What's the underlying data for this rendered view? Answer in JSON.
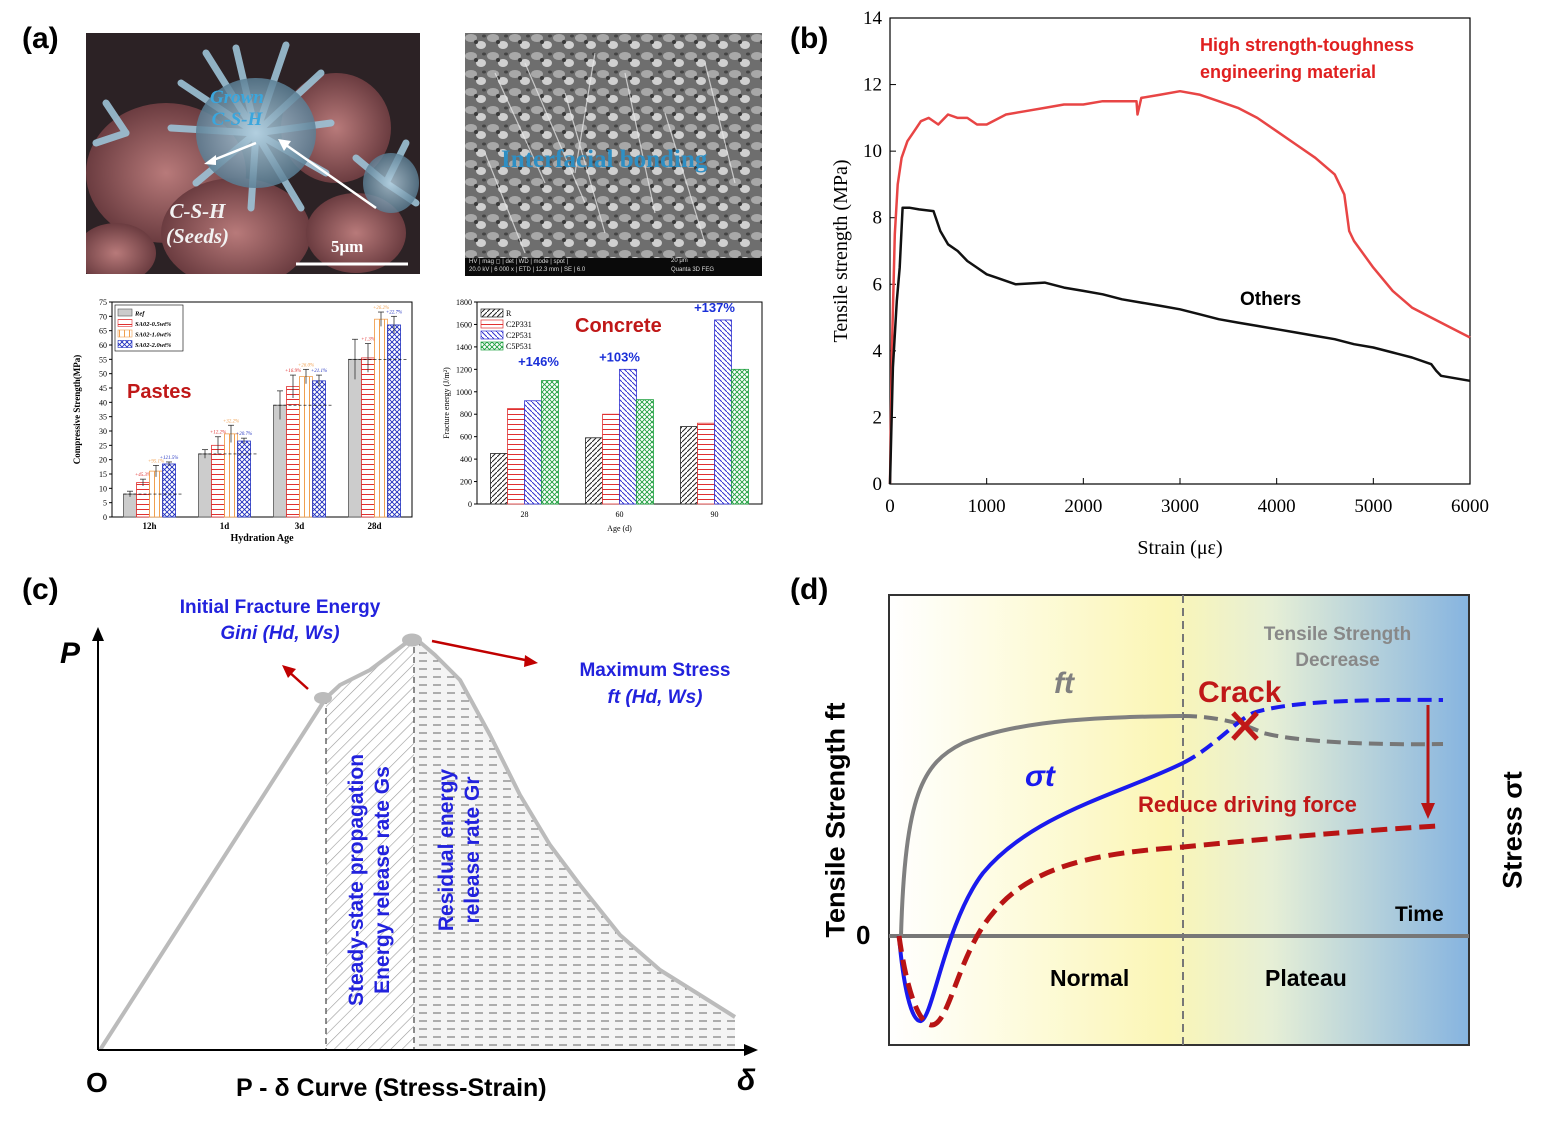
{
  "panels": {
    "a": {
      "label": "(a)",
      "sem1": {
        "grown_line1": "Grown",
        "grown_line2": "C-S-H",
        "seeds_line1": "C-S-H",
        "seeds_line2": "(Seeds)",
        "scale": "5μm"
      },
      "sem2": {
        "caption": "Interfacial bonding",
        "meta_labels": "HV | mag ◻ | det | WD | mode | spot |",
        "meta_values": "20.0 kV | 6 000 x | ETD | 12.3 mm | SE | 6.0",
        "scale": "20 μm",
        "brand": "Quanta 3D FEG"
      }
    },
    "b": {
      "label": "(b)"
    },
    "c": {
      "label": "(c)"
    },
    "d": {
      "label": "(d)"
    }
  },
  "chart_data": [
    {
      "id": "a-pastes",
      "type": "bar",
      "title": "Pastes",
      "xlabel": "Hydration Age",
      "ylabel": "Compressive Strength(MPa)",
      "ylim": [
        0,
        75
      ],
      "yticks": [
        0,
        5,
        10,
        15,
        20,
        25,
        30,
        35,
        40,
        45,
        50,
        55,
        60,
        65,
        70,
        75
      ],
      "categories": [
        "12h",
        "1d",
        "3d",
        "28d"
      ],
      "series": [
        {
          "name": "Ref",
          "values": [
            8,
            22,
            39,
            55
          ],
          "errors": [
            1,
            1.5,
            5,
            7
          ],
          "color": "#888888"
        },
        {
          "name": "SA02-0.5wt%",
          "values": [
            12,
            25,
            45.5,
            55.5
          ],
          "errors": [
            1.2,
            3,
            4,
            5
          ],
          "color": "#e03030"
        },
        {
          "name": "SA02-1.0wt%",
          "values": [
            16,
            29,
            49,
            69
          ],
          "errors": [
            2,
            3,
            2.5,
            2.5
          ],
          "color": "#f0a050"
        },
        {
          "name": "SA02-2.0wt%",
          "values": [
            18.5,
            26.5,
            47.5,
            67
          ],
          "errors": [
            0.7,
            1,
            2,
            3
          ],
          "color": "#2030c0"
        }
      ],
      "annotations": [
        [
          "+45.3%",
          "+95.1%",
          "+121.5%"
        ],
        [
          "+12.2%",
          "+32.2%",
          "+20.7%"
        ],
        [
          "+16.9%",
          "+26.0%",
          "+21.1%"
        ],
        [
          "+1.3%",
          "+26.2%",
          "+22.7%"
        ]
      ]
    },
    {
      "id": "a-concrete",
      "type": "bar",
      "title": "Concrete",
      "xlabel": "Age (d)",
      "ylabel": "Fracture energy (J/m²)",
      "ylim": [
        0,
        1800
      ],
      "yticks": [
        0,
        200,
        400,
        600,
        800,
        1000,
        1200,
        1400,
        1600,
        1800
      ],
      "categories": [
        "28",
        "60",
        "90"
      ],
      "series": [
        {
          "name": "R",
          "values": [
            450,
            590,
            690
          ],
          "color": "#222222"
        },
        {
          "name": "C2P331",
          "values": [
            850,
            800,
            720
          ],
          "color": "#e03030"
        },
        {
          "name": "C2P531",
          "values": [
            920,
            1200,
            1640
          ],
          "color": "#3030d0"
        },
        {
          "name": "C5P531",
          "values": [
            1100,
            930,
            1200
          ],
          "color": "#20a040"
        }
      ],
      "annotations": [
        "+146%",
        "+103%",
        "+137%"
      ]
    },
    {
      "id": "b",
      "type": "line",
      "xlabel": "Strain (με)",
      "ylabel": "Tensile strength (MPa)",
      "xlim": [
        0,
        6000
      ],
      "ylim": [
        0,
        14
      ],
      "xticks": [
        0,
        1000,
        2000,
        3000,
        4000,
        5000,
        6000
      ],
      "yticks": [
        0,
        2,
        4,
        6,
        8,
        10,
        12,
        14
      ],
      "series": [
        {
          "name": "High strength-toughness engineering material",
          "color": "#e84545",
          "x": [
            0,
            20,
            50,
            80,
            120,
            180,
            250,
            320,
            400,
            500,
            600,
            700,
            800,
            900,
            1000,
            1200,
            1400,
            1600,
            1800,
            2000,
            2200,
            2400,
            2550,
            2560,
            2600,
            2800,
            3000,
            3200,
            3400,
            3600,
            3800,
            4000,
            4200,
            4400,
            4600,
            4700,
            4750,
            4800,
            5000,
            5200,
            5400,
            5600,
            5800,
            6000
          ],
          "y": [
            0,
            4,
            7.5,
            9,
            9.8,
            10.3,
            10.6,
            10.9,
            11.0,
            10.8,
            11.1,
            11.0,
            11.0,
            10.8,
            10.8,
            11.1,
            11.2,
            11.3,
            11.4,
            11.4,
            11.5,
            11.5,
            11.5,
            11.1,
            11.6,
            11.7,
            11.8,
            11.7,
            11.5,
            11.3,
            11.0,
            10.6,
            10.2,
            9.8,
            9.3,
            8.7,
            7.6,
            7.3,
            6.5,
            5.8,
            5.3,
            5.0,
            4.7,
            4.4
          ]
        },
        {
          "name": "Others",
          "color": "#111111",
          "x": [
            0,
            30,
            70,
            100,
            130,
            200,
            300,
            450,
            520,
            600,
            700,
            800,
            900,
            1000,
            1100,
            1300,
            1600,
            1800,
            2000,
            2200,
            2400,
            2600,
            2800,
            3000,
            3200,
            3400,
            3600,
            3800,
            4000,
            4200,
            4400,
            4600,
            4800,
            5000,
            5200,
            5400,
            5600,
            5650,
            5700,
            6000
          ],
          "y": [
            0,
            3.5,
            5.5,
            6.5,
            8.3,
            8.3,
            8.25,
            8.2,
            7.6,
            7.2,
            7.0,
            6.7,
            6.5,
            6.3,
            6.2,
            6.0,
            6.05,
            5.9,
            5.8,
            5.7,
            5.55,
            5.45,
            5.35,
            5.25,
            5.1,
            4.95,
            4.85,
            4.75,
            4.65,
            4.55,
            4.45,
            4.35,
            4.2,
            4.1,
            3.95,
            3.8,
            3.6,
            3.4,
            3.25,
            3.1
          ]
        }
      ]
    }
  ],
  "panel_c": {
    "x_axis_label": "P - δ Curve  (Stress-Strain)",
    "y_axis_letter": "P",
    "x_axis_letter": "δ",
    "origin": "O",
    "initial_fracture_energy": "Initial Fracture Energy",
    "g_ini": "Gini (Hd, Ws)",
    "maximum_stress": "Maximum Stress",
    "ft_hw": "ft (Hd, Ws)",
    "steady_line1": "Steady-state propagation",
    "steady_line2": "Energy release rate Gs",
    "residual_line1": "Residual energy",
    "residual_line2": "release rate Gr"
  },
  "panel_d": {
    "y_left": "Tensile Strength ft",
    "y_right": "Stress σt",
    "zero": "0",
    "time": "Time",
    "ft_label": "ft",
    "sigma_label": "σt",
    "crack": "Crack",
    "tsd_line1": "Tensile Strength",
    "tsd_line2": "Decrease",
    "reduce": "Reduce  driving force",
    "normal": "Normal",
    "plateau": "Plateau"
  }
}
